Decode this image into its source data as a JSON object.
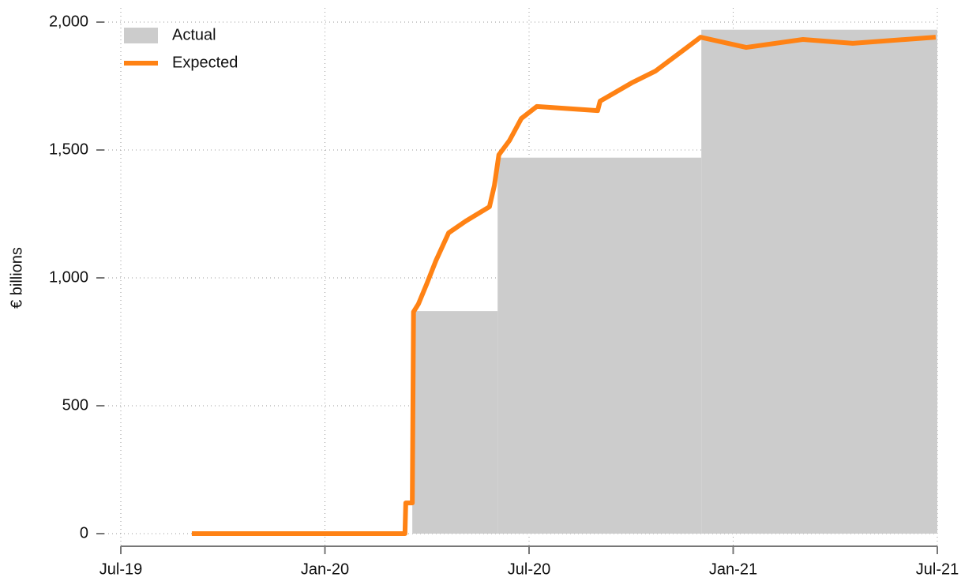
{
  "chart_data": {
    "type": "line",
    "y_label": "€ billions",
    "xlim": [
      2019.5,
      2021.5
    ],
    "xticks": [
      {
        "value": 2019.5,
        "label": "Jul-19"
      },
      {
        "value": 2020.0,
        "label": "Jan-20"
      },
      {
        "value": 2020.5,
        "label": "Jul-20"
      },
      {
        "value": 2021.0,
        "label": "Jan-21"
      },
      {
        "value": 2021.5,
        "label": "Jul-21"
      }
    ],
    "ylim": [
      0,
      2000
    ],
    "yticks": [
      0,
      {
        "value": 500,
        "label": "500"
      },
      {
        "value": 1000,
        "label": "1,000"
      },
      {
        "value": 1500,
        "label": "1,500"
      },
      {
        "value": 2000,
        "label": "2,000"
      }
    ],
    "grid": true,
    "legend": "top-left",
    "series": [
      {
        "name": "Actual",
        "kind": "step-area",
        "color": "#cccccc",
        "bins": [
          2020.214,
          2020.423,
          2020.922,
          2021.5
        ],
        "values": [
          870,
          1470,
          1970
        ]
      },
      {
        "name": "Expected",
        "kind": "line",
        "color": "#ff8214",
        "x": [
          2019.674,
          2020.196,
          2020.198,
          2020.214,
          2020.217,
          2020.229,
          2020.249,
          2020.272,
          2020.303,
          2020.345,
          2020.403,
          2020.415,
          2020.426,
          2020.452,
          2020.481,
          2020.519,
          2020.668,
          2020.674,
          2020.751,
          2020.81,
          2020.887,
          2020.92,
          2021.032,
          2021.171,
          2021.293,
          2021.496
        ],
        "values": [
          0,
          0,
          120,
          120,
          867,
          898,
          975,
          1068,
          1176,
          1222,
          1278,
          1361,
          1481,
          1537,
          1623,
          1670,
          1654,
          1691,
          1762,
          1809,
          1901,
          1941,
          1901,
          1932,
          1917,
          1941
        ]
      }
    ]
  }
}
